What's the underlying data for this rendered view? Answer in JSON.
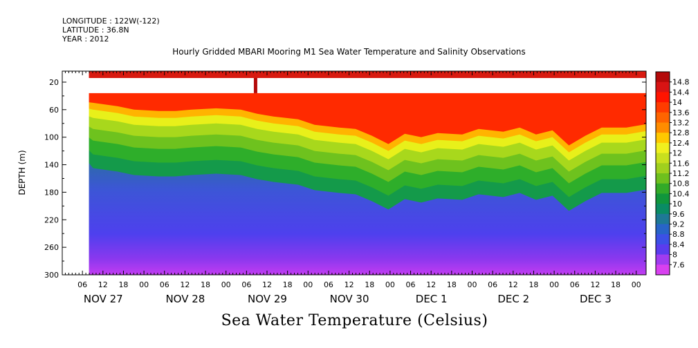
{
  "header": {
    "longitude": "LONGITUDE : 122W(-122)",
    "latitude": "LATITUDE : 36.8N",
    "year": "YEAR : 2012"
  },
  "chart_data": {
    "type": "heatmap",
    "title": "Hourly Gridded MBARI Mooring M1 Sea Water Temperature and Salinity Observations",
    "xlabel": "Sea Water Temperature (Celsius)",
    "ylabel": "DEPTH (m)",
    "ylim": [
      300,
      4
    ],
    "y_ticks": [
      20,
      60,
      100,
      140,
      180,
      220,
      260,
      300
    ],
    "x_hour_ticks": [
      "06",
      "12",
      "18",
      "00",
      "06",
      "12",
      "18",
      "00",
      "06",
      "12",
      "18",
      "00",
      "06",
      "12",
      "18",
      "00",
      "06",
      "12",
      "18",
      "00",
      "06",
      "12",
      "18",
      "00",
      "06",
      "12",
      "18",
      "00",
      "06",
      "12",
      "18",
      "00"
    ],
    "x_day_labels": [
      "NOV 27",
      "NOV 28",
      "NOV 29",
      "NOV 30",
      "DEC  1",
      "DEC  2",
      "DEC  3"
    ],
    "colorbar": {
      "labels": [
        "14.8",
        "14.4",
        "14",
        "13.6",
        "13.2",
        "12.8",
        "12.4",
        "12",
        "11.6",
        "11.2",
        "10.8",
        "10.4",
        "10",
        "9.6",
        "9.2",
        "8.8",
        "8.4",
        "8",
        "7.6"
      ],
      "range": [
        7.6,
        15.0
      ]
    },
    "thermocline_depth_profile": [
      [
        27.0,
        50
      ],
      [
        27.3,
        55
      ],
      [
        27.5,
        60
      ],
      [
        27.8,
        62
      ],
      [
        28.0,
        62
      ],
      [
        28.2,
        60
      ],
      [
        28.5,
        58
      ],
      [
        28.8,
        60
      ],
      [
        29.0,
        66
      ],
      [
        29.2,
        70
      ],
      [
        29.5,
        74
      ],
      [
        29.7,
        82
      ],
      [
        30.0,
        86
      ],
      [
        30.2,
        88
      ],
      [
        30.4,
        98
      ],
      [
        30.6,
        110
      ],
      [
        30.8,
        95
      ],
      [
        31.0,
        100
      ],
      [
        31.2,
        94
      ],
      [
        31.5,
        96
      ],
      [
        31.7,
        88
      ],
      [
        32.0,
        92
      ],
      [
        32.2,
        86
      ],
      [
        32.4,
        96
      ],
      [
        32.6,
        90
      ],
      [
        32.8,
        112
      ],
      [
        33.0,
        98
      ],
      [
        33.2,
        86
      ],
      [
        33.5,
        86
      ],
      [
        33.8,
        80
      ],
      [
        34.0,
        82
      ]
    ],
    "missing_data": "white band approx. 14-36 m depth after Nov 27 00:00 (except surface line ~4-14 m)"
  }
}
